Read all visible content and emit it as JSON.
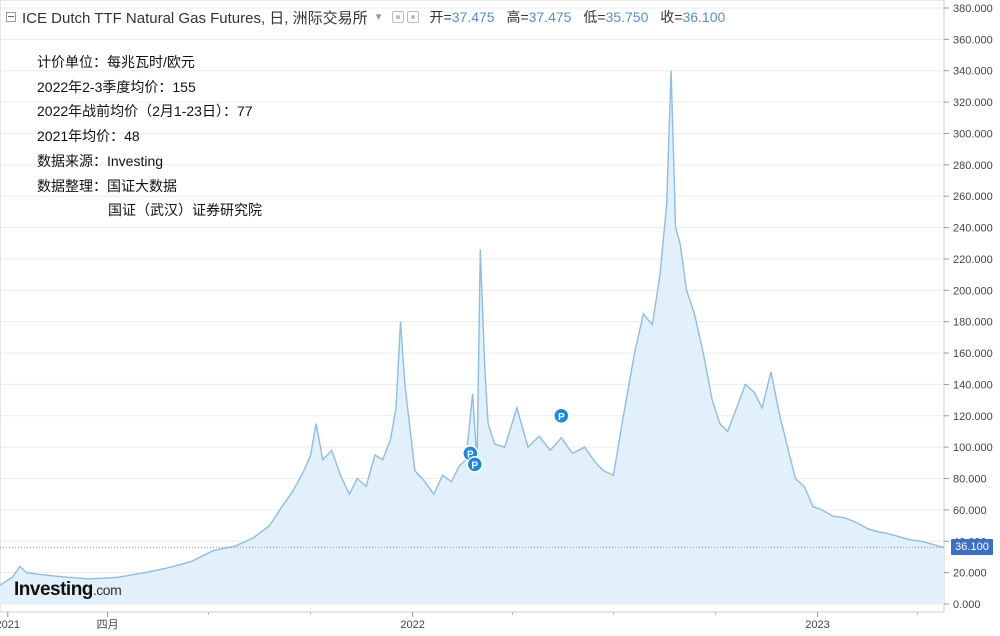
{
  "header": {
    "title": "ICE Dutch TTF Natural Gas Futures, 日, 洲际交易所",
    "open_label": "开=",
    "open": "37.475",
    "high_label": "高=",
    "high": "37.475",
    "low_label": "低=",
    "low": "35.750",
    "close_label": "收=",
    "close": "36.100"
  },
  "notes": [
    "计价单位：每兆瓦时/欧元",
    "2022年2-3季度均价：155",
    "2022年战前均价（2月1-23日）：77",
    "2021年均价：48",
    "数据来源：Investing",
    "数据整理：国证大数据",
    "国证（武汉）证券研究院"
  ],
  "logo": {
    "main": "Investing",
    "suffix": ".com"
  },
  "colors": {
    "line": "#8fbde0",
    "fill": "#e1f0fa",
    "badge": "#3d6fc4",
    "grid": "#e8e8e8"
  },
  "chart_data": {
    "type": "area",
    "title": "ICE Dutch TTF Natural Gas Futures",
    "ylim": [
      0,
      380
    ],
    "yticks": [
      "0.000",
      "20.000",
      "40.000",
      "60.000",
      "80.000",
      "100.000",
      "120.000",
      "140.000",
      "160.000",
      "180.000",
      "200.000",
      "220.000",
      "240.000",
      "260.000",
      "280.000",
      "300.000",
      "320.000",
      "340.000",
      "360.000",
      "380.000"
    ],
    "xticks": [
      {
        "date": "2021-01-01",
        "label": "2021"
      },
      {
        "date": "2021-04-01",
        "label": "四月"
      },
      {
        "date": "2022-01-01",
        "label": "2022"
      },
      {
        "date": "2023-01-01",
        "label": "2023"
      }
    ],
    "x_range": [
      "2020-12-25",
      "2023-04-25"
    ],
    "grid": true,
    "last_price": "36.100",
    "last_value": 36.1,
    "markers": [
      {
        "date": "2022-02-22",
        "value": 96,
        "label": "P"
      },
      {
        "date": "2022-02-26",
        "value": 89,
        "label": "P"
      },
      {
        "date": "2022-05-15",
        "value": 120,
        "label": "P"
      }
    ],
    "series": [
      {
        "x": [
          "2020-12-25",
          "2021-01-05",
          "2021-01-12",
          "2021-01-18",
          "2021-01-28",
          "2021-02-10",
          "2021-02-25",
          "2021-03-15",
          "2021-04-10",
          "2021-05-05",
          "2021-05-25",
          "2021-06-15",
          "2021-07-05",
          "2021-07-25",
          "2021-08-10",
          "2021-08-25",
          "2021-09-05",
          "2021-09-15",
          "2021-09-25",
          "2021-10-01",
          "2021-10-06",
          "2021-10-12",
          "2021-10-20",
          "2021-10-28",
          "2021-11-05",
          "2021-11-12",
          "2021-11-20",
          "2021-11-28",
          "2021-12-05",
          "2021-12-12",
          "2021-12-17",
          "2021-12-21",
          "2021-12-25",
          "2022-01-03",
          "2022-01-12",
          "2022-01-20",
          "2022-01-28",
          "2022-02-05",
          "2022-02-12",
          "2022-02-18",
          "2022-02-24",
          "2022-02-28",
          "2022-03-03",
          "2022-03-07",
          "2022-03-10",
          "2022-03-16",
          "2022-03-25",
          "2022-04-05",
          "2022-04-15",
          "2022-04-25",
          "2022-05-05",
          "2022-05-15",
          "2022-05-25",
          "2022-06-05",
          "2022-06-15",
          "2022-06-22",
          "2022-07-01",
          "2022-07-10",
          "2022-07-20",
          "2022-07-28",
          "2022-08-05",
          "2022-08-12",
          "2022-08-18",
          "2022-08-22",
          "2022-08-26",
          "2022-08-30",
          "2022-09-05",
          "2022-09-12",
          "2022-09-20",
          "2022-09-28",
          "2022-10-05",
          "2022-10-12",
          "2022-10-20",
          "2022-10-28",
          "2022-11-05",
          "2022-11-12",
          "2022-11-20",
          "2022-11-28",
          "2022-12-05",
          "2022-12-12",
          "2022-12-20",
          "2022-12-28",
          "2023-01-05",
          "2023-01-15",
          "2023-01-25",
          "2023-02-05",
          "2023-02-15",
          "2023-02-25",
          "2023-03-05",
          "2023-03-15",
          "2023-03-25",
          "2023-04-05",
          "2023-04-15",
          "2023-04-25"
        ],
        "values": [
          12,
          17,
          24,
          20,
          19,
          18,
          17,
          16,
          17,
          20,
          23,
          27,
          34,
          37,
          42,
          50,
          62,
          72,
          85,
          95,
          115,
          92,
          98,
          82,
          70,
          80,
          75,
          95,
          92,
          105,
          125,
          180,
          140,
          85,
          78,
          70,
          82,
          78,
          88,
          92,
          134,
          90,
          226,
          150,
          115,
          102,
          100,
          125,
          100,
          107,
          98,
          106,
          96,
          100,
          90,
          85,
          82,
          120,
          160,
          185,
          178,
          210,
          255,
          340,
          240,
          230,
          200,
          185,
          160,
          130,
          115,
          110,
          125,
          140,
          135,
          125,
          148,
          120,
          100,
          80,
          75,
          62,
          60,
          56,
          55,
          52,
          48,
          46,
          45,
          43,
          41,
          40,
          38,
          36
        ]
      }
    ]
  }
}
